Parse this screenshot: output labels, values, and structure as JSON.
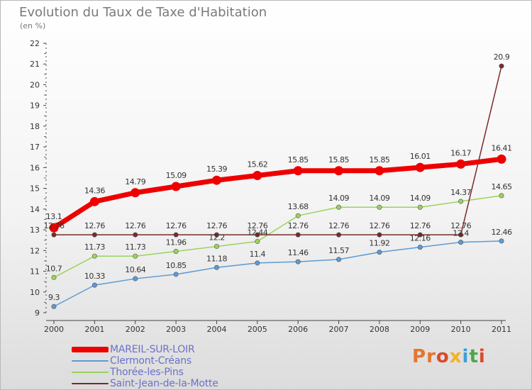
{
  "page": {
    "title": "Evolution du Taux de Taxe d'Habitation",
    "subtitle": "(en %)"
  },
  "logo": {
    "text": "Proxiti",
    "letter_colors": [
      "#e8742a",
      "#e8742a",
      "#d94a2a",
      "#f2b321",
      "#3aa0d8",
      "#4aa84a",
      "#d94a2a"
    ]
  },
  "chart_data": {
    "type": "line",
    "title": "Evolution du Taux de Taxe d'Habitation",
    "subtitle": "(en %)",
    "xlabel": "",
    "ylabel": "",
    "x": [
      "2000",
      "2001",
      "2002",
      "2003",
      "2004",
      "2005",
      "2006",
      "2007",
      "2008",
      "2009",
      "2010",
      "2011"
    ],
    "ylim": [
      9,
      22
    ],
    "yticks": [
      9,
      10,
      11,
      12,
      13,
      14,
      15,
      16,
      17,
      18,
      19,
      20,
      21,
      22
    ],
    "grid": false,
    "legend_position": "bottom-left",
    "series": [
      {
        "name": "MAREIL-SUR-LOIR",
        "color": "#ee0000",
        "emphasis": true,
        "values": [
          13.1,
          14.36,
          14.79,
          15.09,
          15.39,
          15.62,
          15.85,
          15.85,
          15.85,
          16.01,
          16.17,
          16.41
        ],
        "labels": [
          "13.1",
          "14.36",
          "14.79",
          "15.09",
          "15.39",
          "15.62",
          "15.85",
          "15.85",
          "15.85",
          "16.01",
          "16.17",
          "16.41"
        ]
      },
      {
        "name": "Clermont-Créans",
        "color": "#5b9bd5",
        "values": [
          9.3,
          10.33,
          10.64,
          10.85,
          11.18,
          11.4,
          11.46,
          11.57,
          11.92,
          12.16,
          12.4,
          12.46
        ],
        "labels": [
          "9.3",
          "10.33",
          "10.64",
          "10.85",
          "11.18",
          "11.4",
          "11.46",
          "11.57",
          "11.92",
          "12.16",
          "12.4",
          "12.46"
        ]
      },
      {
        "name": "Thorée-les-Pins",
        "color": "#9ad35a",
        "values": [
          10.7,
          11.73,
          11.73,
          11.96,
          12.2,
          12.44,
          13.68,
          14.09,
          14.09,
          14.09,
          14.37,
          14.65
        ],
        "labels": [
          "10.7",
          "11.73",
          "11.73",
          "11.96",
          "12.2",
          "12.44",
          "13.68",
          "14.09",
          "14.09",
          "14.09",
          "14.37",
          "14.65"
        ]
      },
      {
        "name": "Saint-Jean-de-la-Motte",
        "color": "#7a2a2a",
        "values": [
          12.76,
          12.76,
          12.76,
          12.76,
          12.76,
          12.76,
          12.76,
          12.76,
          12.76,
          12.76,
          12.76,
          20.9
        ],
        "labels": [
          "12.76",
          "12.76",
          "12.76",
          "12.76",
          "12.76",
          "12.76",
          "12.76",
          "12.76",
          "12.76",
          "12.76",
          "12.76",
          "20.9"
        ]
      }
    ]
  }
}
